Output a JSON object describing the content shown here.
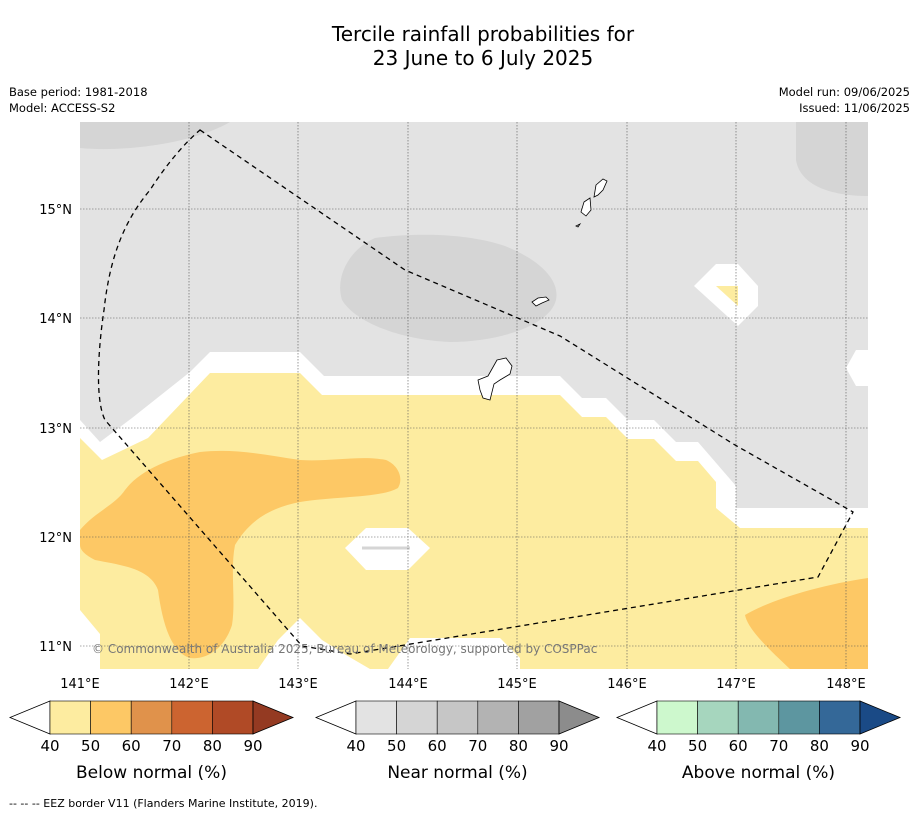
{
  "title": {
    "line1": "Tercile rainfall probabilities for",
    "line2": "23 June to 6 July 2025"
  },
  "meta": {
    "base_period": "Base period: 1981-2018",
    "model": "Model: ACCESS-S2",
    "model_run": "Model run: 09/06/2025",
    "issued": "Issued: 11/06/2025"
  },
  "map": {
    "lat_labels": [
      "15°N",
      "14°N",
      "13°N",
      "12°N",
      "11°N"
    ],
    "lon_labels": [
      "141°E",
      "142°E",
      "143°E",
      "144°E",
      "145°E",
      "146°E",
      "147°E",
      "148°E"
    ],
    "copyright": "© Commonwealth of Australia 2025, Bureau of Meteorology, supported by COSPPac"
  },
  "colorbars": [
    {
      "title": "Below normal (%)",
      "ticks": [
        "40",
        "50",
        "60",
        "70",
        "80",
        "90"
      ],
      "colors": [
        "#fdeca0",
        "#fdc865",
        "#e0924b",
        "#cc6430",
        "#b04a26",
        "#943a22"
      ]
    },
    {
      "title": "Near normal (%)",
      "ticks": [
        "40",
        "50",
        "60",
        "70",
        "80",
        "90"
      ],
      "colors": [
        "#e3e3e3",
        "#d5d5d5",
        "#c6c6c6",
        "#b3b3b3",
        "#a1a1a1",
        "#8c8c8c"
      ]
    },
    {
      "title": "Above normal (%)",
      "ticks": [
        "40",
        "50",
        "60",
        "70",
        "80",
        "90"
      ],
      "colors": [
        "#cdf8cd",
        "#a6d6be",
        "#83b8b0",
        "#5d96a0",
        "#346898",
        "#1a4a86"
      ]
    }
  ],
  "footer": "--  --  -- EEZ border V11 (Flanders Marine Institute, 2019)."
}
